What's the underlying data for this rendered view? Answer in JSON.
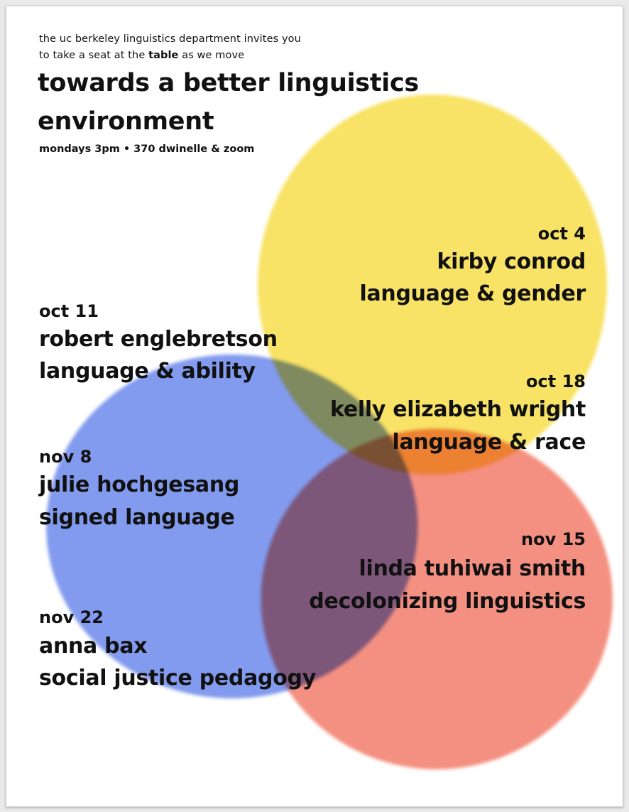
{
  "intro": {
    "line1": "the uc berkeley linguistics department invites you",
    "line2_before": "to take a seat at the ",
    "line2_bold": "table",
    "line2_after": " as we move"
  },
  "title": {
    "line1": "towards a better linguistics",
    "line2": "environment"
  },
  "subtitle": "mondays 3pm • 370 dwinelle & zoom",
  "sessions": [
    {
      "date": "oct 4",
      "speaker": "kirby conrod",
      "topic": "language & gender"
    },
    {
      "date": "oct 11",
      "speaker": "robert englebretson",
      "topic": "language & ability"
    },
    {
      "date": "oct 18",
      "speaker": "kelly elizabeth wright",
      "topic": "language & race"
    },
    {
      "date": "nov 8",
      "speaker": "julie hochgesang",
      "topic": "signed language"
    },
    {
      "date": "nov 15",
      "speaker": "linda tuhiwai smith",
      "topic": "decolonizing linguistics"
    },
    {
      "date": "nov 22",
      "speaker": "anna bax",
      "topic": "social justice pedagogy"
    }
  ],
  "colors": {
    "yellow": "#f8e25e",
    "blue": "#7b96ee",
    "red": "#f48a7a",
    "text": "#111111"
  }
}
